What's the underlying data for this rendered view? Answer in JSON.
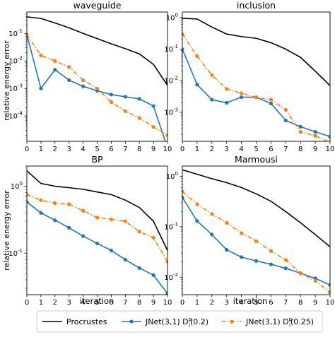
{
  "figure": {
    "ylabel": "relative energy error",
    "xlabel": "iteration"
  },
  "legend": {
    "placement": "bottom",
    "entries": [
      {
        "label": "Procrustes",
        "series": 0
      },
      {
        "label": "JNet(3,1) D",
        "sup": "p",
        "sub": "l",
        "tail": "(0.2)",
        "series": 1
      },
      {
        "label": "JNet(3,1) D",
        "sup": "p",
        "sub": "l",
        "tail": "(0.25)",
        "series": 2
      }
    ]
  },
  "colors": {
    "procrustes": "#000000",
    "jnet_02": "#1f77b4",
    "jnet_025": "#ff7f0e"
  },
  "chart_data": [
    {
      "type": "line",
      "title": "waveguide",
      "yscale": "log",
      "ylim": [
        1.2e-05,
        0.6
      ],
      "xlim": [
        0,
        10
      ],
      "yticks": [
        0.0001,
        0.001,
        0.01,
        0.1
      ],
      "x": [
        0,
        1,
        2,
        3,
        4,
        5,
        6,
        7,
        8,
        9,
        10
      ],
      "series": [
        {
          "name": "Procrustes",
          "style": "solid",
          "marker": "none",
          "values": [
            0.4,
            0.35,
            0.24,
            0.16,
            0.1,
            0.065,
            0.042,
            0.028,
            0.018,
            0.0075,
            0.0013
          ]
        },
        {
          "name": "JNet(3,1) D(0.2)",
          "style": "solid",
          "marker": "circle",
          "values": [
            0.09,
            0.001,
            0.0048,
            0.002,
            0.0012,
            0.00083,
            0.0006,
            0.0005,
            0.00042,
            0.00023,
            7e-06
          ]
        },
        {
          "name": "JNet(3,1) D(0.25)",
          "style": "dashdot",
          "marker": "circle",
          "values": [
            0.09,
            0.016,
            0.01,
            0.006,
            0.002,
            0.001,
            0.00032,
            0.00015,
            8.5e-05,
            4e-05,
            2e-05
          ]
        }
      ]
    },
    {
      "type": "line",
      "title": "inclusion",
      "yscale": "log",
      "ylim": [
        0.00012,
        1.5
      ],
      "xlim": [
        0,
        10
      ],
      "yticks": [
        0.0001,
        0.001,
        0.01,
        0.1,
        1
      ],
      "x": [
        0,
        1,
        2,
        3,
        4,
        5,
        6,
        7,
        8,
        9,
        10
      ],
      "series": [
        {
          "name": "Procrustes",
          "style": "solid",
          "marker": "none",
          "values": [
            0.95,
            0.9,
            0.5,
            0.3,
            0.25,
            0.22,
            0.16,
            0.1,
            0.055,
            0.02,
            0.007
          ]
        },
        {
          "name": "JNet(3,1) D(0.2)",
          "style": "solid",
          "marker": "circle",
          "values": [
            0.1,
            0.0075,
            0.0025,
            0.002,
            0.003,
            0.003,
            0.0019,
            0.00055,
            0.00035,
            0.00024,
            0.00017
          ]
        },
        {
          "name": "JNet(3,1) D(0.25)",
          "style": "dashdot",
          "marker": "circle",
          "values": [
            0.3,
            0.06,
            0.015,
            0.0055,
            0.004,
            0.003,
            0.0025,
            0.0012,
            0.00024,
            0.00018,
            0.00011
          ]
        }
      ]
    },
    {
      "type": "line",
      "title": "BP",
      "yscale": "log",
      "ylim": [
        0.024,
        2.0
      ],
      "xlim": [
        0,
        10
      ],
      "yticks": [
        0.1,
        1
      ],
      "x": [
        0,
        1,
        2,
        3,
        4,
        5,
        6,
        7,
        8,
        9,
        10
      ],
      "series": [
        {
          "name": "Procrustes",
          "style": "solid",
          "marker": "none",
          "values": [
            1.7,
            1.1,
            1.0,
            0.95,
            0.9,
            0.82,
            0.75,
            0.62,
            0.48,
            0.3,
            0.11
          ]
        },
        {
          "name": "JNet(3,1) D(0.2)",
          "style": "solid",
          "marker": "circle",
          "values": [
            0.58,
            0.4,
            0.31,
            0.24,
            0.18,
            0.14,
            0.11,
            0.08,
            0.06,
            0.047,
            0.025
          ]
        },
        {
          "name": "JNet(3,1) D(0.25)",
          "style": "dashdot",
          "marker": "circle",
          "values": [
            0.75,
            0.62,
            0.56,
            0.54,
            0.43,
            0.34,
            0.32,
            0.3,
            0.21,
            0.17,
            0.075
          ]
        }
      ]
    },
    {
      "type": "line",
      "title": "Marmousi",
      "yscale": "log",
      "ylim": [
        0.0045,
        1.6
      ],
      "xlim": [
        0,
        10
      ],
      "yticks": [
        0.01,
        0.1,
        1
      ],
      "x": [
        0,
        1,
        2,
        3,
        4,
        5,
        6,
        7,
        8,
        9,
        10
      ],
      "series": [
        {
          "name": "Procrustes",
          "style": "solid",
          "marker": "none",
          "values": [
            1.35,
            1.1,
            0.9,
            0.75,
            0.6,
            0.45,
            0.32,
            0.2,
            0.12,
            0.07,
            0.04
          ]
        },
        {
          "name": "JNet(3,1) D(0.2)",
          "style": "solid",
          "marker": "circle",
          "values": [
            0.38,
            0.13,
            0.07,
            0.035,
            0.025,
            0.021,
            0.018,
            0.015,
            0.012,
            0.0095,
            0.007
          ]
        },
        {
          "name": "JNet(3,1) D(0.25)",
          "style": "dashdot",
          "marker": "circle",
          "values": [
            0.5,
            0.28,
            0.18,
            0.12,
            0.075,
            0.052,
            0.033,
            0.022,
            0.012,
            0.0085,
            0.005
          ]
        }
      ]
    }
  ]
}
